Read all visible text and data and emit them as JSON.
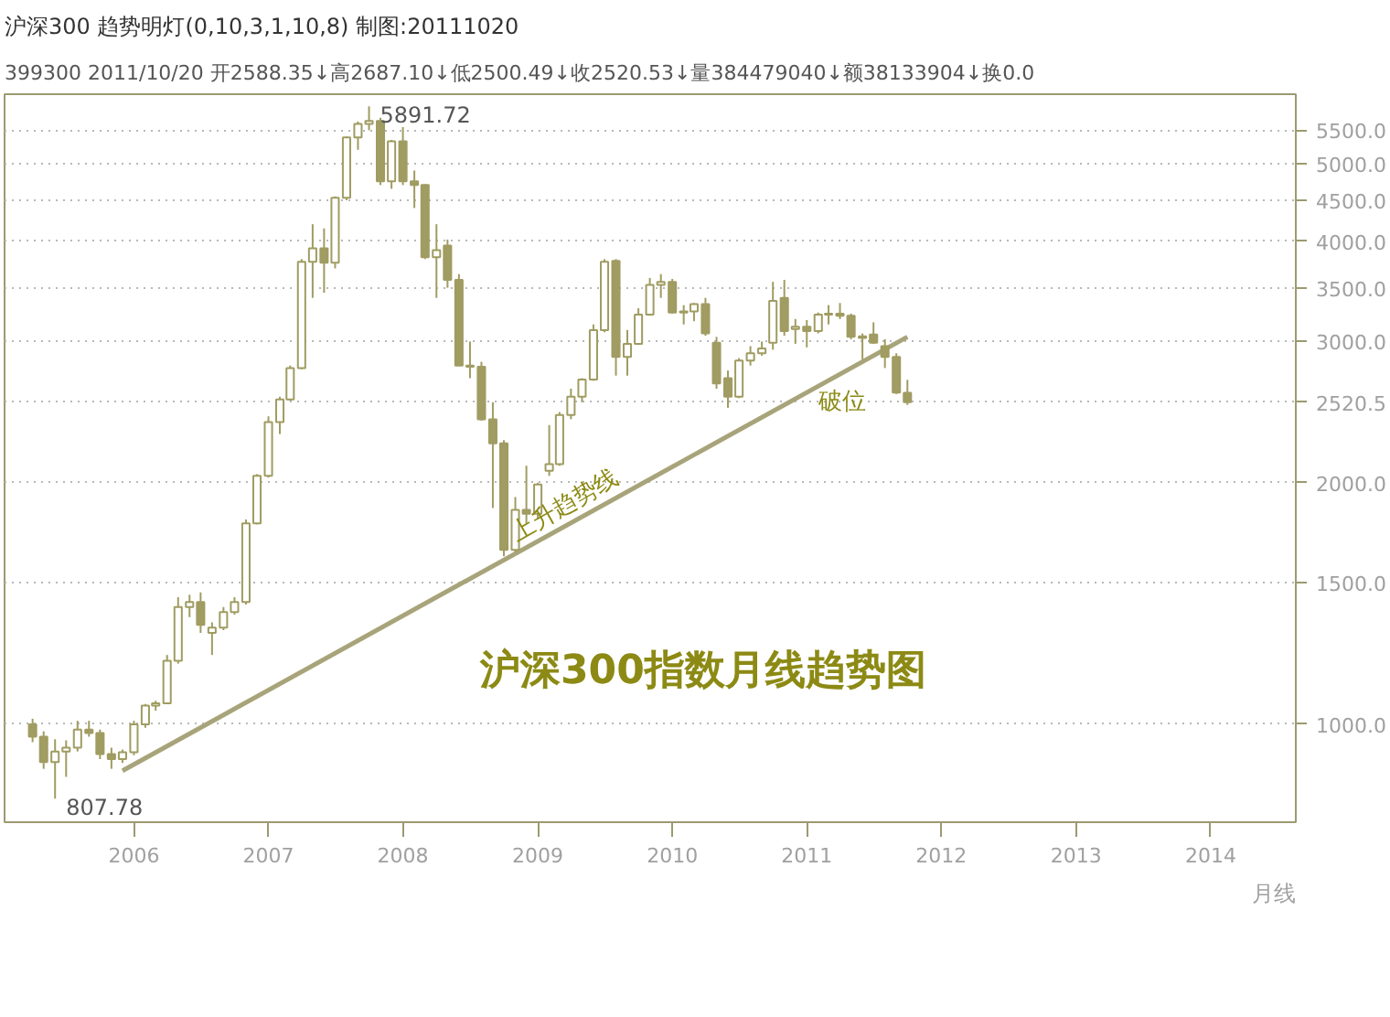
{
  "chart_data": {
    "type": "candlestick",
    "title": "沪深300指数月线趋势图",
    "subtitle": "沪深300   趋势明灯(0,10,3,1,10,8)   制图:20111020",
    "xlabel": "月线",
    "annotations": [
      "399300 2011/10/20 开2588.35↓高2687.10↓低2500.49↓收2520.53↓量384479040↓额38133904↓换0.0",
      {
        "text": "5891.72",
        "x": "2007-10",
        "y": 5891.72
      },
      {
        "text": "807.78",
        "x": "2005-06",
        "y": 807.78
      },
      "上升趋势线",
      "破位"
    ],
    "color": "#a09c62",
    "x": [
      "2005-04",
      "2005-05",
      "2005-06",
      "2005-07",
      "2005-08",
      "2005-09",
      "2005-10",
      "2005-11",
      "2005-12",
      "2006-01",
      "2006-02",
      "2006-03",
      "2006-04",
      "2006-05",
      "2006-06",
      "2006-07",
      "2006-08",
      "2006-09",
      "2006-10",
      "2006-11",
      "2006-12",
      "2007-01",
      "2007-02",
      "2007-03",
      "2007-04",
      "2007-05",
      "2007-06",
      "2007-07",
      "2007-08",
      "2007-09",
      "2007-10",
      "2007-11",
      "2007-12",
      "2008-01",
      "2008-02",
      "2008-03",
      "2008-04",
      "2008-05",
      "2008-06",
      "2008-07",
      "2008-08",
      "2008-09",
      "2008-10",
      "2008-11",
      "2008-12",
      "2009-01",
      "2009-02",
      "2009-03",
      "2009-04",
      "2009-05",
      "2009-06",
      "2009-07",
      "2009-08",
      "2009-09",
      "2009-10",
      "2009-11",
      "2009-12",
      "2010-01",
      "2010-02",
      "2010-03",
      "2010-04",
      "2010-05",
      "2010-06",
      "2010-07",
      "2010-08",
      "2010-09",
      "2010-10",
      "2010-11",
      "2010-12",
      "2011-01",
      "2011-02",
      "2011-03",
      "2011-04",
      "2011-05",
      "2011-06",
      "2011-07",
      "2011-08",
      "2011-09",
      "2011-10"
    ],
    "ohlc": [
      [
        1000,
        1016,
        950,
        965
      ],
      [
        965,
        980,
        880,
        897
      ],
      [
        897,
        958,
        807.78,
        925
      ],
      [
        925,
        955,
        860,
        935
      ],
      [
        935,
        1010,
        925,
        985
      ],
      [
        985,
        1010,
        965,
        975
      ],
      [
        975,
        985,
        905,
        918
      ],
      [
        918,
        935,
        880,
        905
      ],
      [
        905,
        930,
        895,
        923
      ],
      [
        923,
        1010,
        915,
        1000
      ],
      [
        1000,
        1060,
        990,
        1055
      ],
      [
        1055,
        1070,
        1040,
        1062
      ],
      [
        1062,
        1220,
        1060,
        1200
      ],
      [
        1200,
        1440,
        1190,
        1400
      ],
      [
        1400,
        1450,
        1360,
        1420
      ],
      [
        1420,
        1460,
        1300,
        1330
      ],
      [
        1300,
        1340,
        1220,
        1320
      ],
      [
        1320,
        1400,
        1310,
        1380
      ],
      [
        1380,
        1440,
        1370,
        1420
      ],
      [
        1420,
        1800,
        1410,
        1780
      ],
      [
        1780,
        2050,
        1775,
        2040
      ],
      [
        2040,
        2420,
        2030,
        2380
      ],
      [
        2380,
        2560,
        2300,
        2540
      ],
      [
        2540,
        2800,
        2530,
        2780
      ],
      [
        2780,
        3800,
        2770,
        3770
      ],
      [
        3770,
        4200,
        3400,
        3920
      ],
      [
        3920,
        4150,
        3450,
        3760
      ],
      [
        3760,
        4550,
        3700,
        4530
      ],
      [
        4530,
        5400,
        4500,
        5390
      ],
      [
        5390,
        5640,
        5200,
        5600
      ],
      [
        5600,
        5891.72,
        5500,
        5650
      ],
      [
        5650,
        5700,
        4700,
        4750
      ],
      [
        4750,
        5350,
        4650,
        5330
      ],
      [
        5330,
        5550,
        4700,
        4750
      ],
      [
        4750,
        4900,
        4400,
        4700
      ],
      [
        4700,
        4710,
        3800,
        3820
      ],
      [
        3820,
        4200,
        3400,
        3900
      ],
      [
        3950,
        4020,
        3500,
        3580
      ],
      [
        3580,
        3640,
        2800,
        2800
      ],
      [
        2800,
        3000,
        2700,
        2790
      ],
      [
        2790,
        2830,
        2390,
        2400
      ],
      [
        2400,
        2520,
        1860,
        2240
      ],
      [
        2240,
        2260,
        1620,
        1650
      ],
      [
        1650,
        1920,
        1640,
        1850
      ],
      [
        1850,
        2100,
        1780,
        1830
      ],
      [
        1830,
        2000,
        1800,
        1990
      ],
      [
        2070,
        2360,
        2040,
        2110
      ],
      [
        2110,
        2450,
        2100,
        2430
      ],
      [
        2430,
        2620,
        2400,
        2560
      ],
      [
        2560,
        2700,
        2520,
        2690
      ],
      [
        2690,
        3150,
        2680,
        3100
      ],
      [
        3100,
        3800,
        3080,
        3770
      ],
      [
        3780,
        3800,
        2720,
        2870
      ],
      [
        2870,
        3100,
        2720,
        2980
      ],
      [
        2980,
        3300,
        2970,
        3240
      ],
      [
        3240,
        3600,
        3230,
        3530
      ],
      [
        3530,
        3640,
        3400,
        3560
      ],
      [
        3560,
        3590,
        3250,
        3260
      ],
      [
        3260,
        3330,
        3150,
        3270
      ],
      [
        3270,
        3350,
        3180,
        3340
      ],
      [
        3340,
        3400,
        3050,
        3070
      ],
      [
        2990,
        3040,
        2620,
        2660
      ],
      [
        2700,
        2760,
        2480,
        2560
      ],
      [
        2560,
        2860,
        2550,
        2840
      ],
      [
        2840,
        2960,
        2800,
        2900
      ],
      [
        2900,
        3000,
        2880,
        2940
      ],
      [
        2990,
        3560,
        2930,
        3370
      ],
      [
        3400,
        3580,
        3050,
        3090
      ],
      [
        3110,
        3200,
        2980,
        3130
      ],
      [
        3130,
        3190,
        2950,
        3090
      ],
      [
        3090,
        3260,
        3070,
        3240
      ],
      [
        3240,
        3330,
        3150,
        3250
      ],
      [
        3250,
        3350,
        3200,
        3230
      ],
      [
        3230,
        3250,
        3020,
        3040
      ],
      [
        3030,
        3070,
        2850,
        3045
      ],
      [
        3060,
        3170,
        2980,
        2990
      ],
      [
        2960,
        3020,
        2780,
        2870
      ],
      [
        2870,
        2900,
        2580,
        2590
      ],
      [
        2588.35,
        2687.1,
        2500.49,
        2520.53
      ]
    ],
    "series": [
      {
        "type": "line",
        "color": "#a8a47a",
        "x": [
          "2005-12",
          "2011-10"
        ],
        "values": [
          875,
          3040
        ]
      }
    ],
    "xlim": [
      "2005-01-15",
      "2014-08-20"
    ],
    "ylim": [
      755,
      6100
    ],
    "log": true,
    "xticks": [
      "2006",
      "2007",
      "2008",
      "2009",
      "2010",
      "2011",
      "2012",
      "2013",
      "2014"
    ],
    "yticks": [
      {
        "value": 1000,
        "label": "1000.0"
      },
      {
        "value": 1500,
        "label": "1500.0"
      },
      {
        "value": 2000,
        "label": "2000.0"
      },
      {
        "value": 2520.5,
        "label": "2520.5"
      },
      {
        "value": 3000,
        "label": "3000.0"
      },
      {
        "value": 3500,
        "label": "3500.0"
      },
      {
        "value": 4000,
        "label": "4000.0"
      },
      {
        "value": 4500,
        "label": "4500.0"
      },
      {
        "value": 5000,
        "label": "5000.0"
      },
      {
        "value": 5500,
        "label": "5500.0"
      }
    ],
    "grid": "y"
  }
}
